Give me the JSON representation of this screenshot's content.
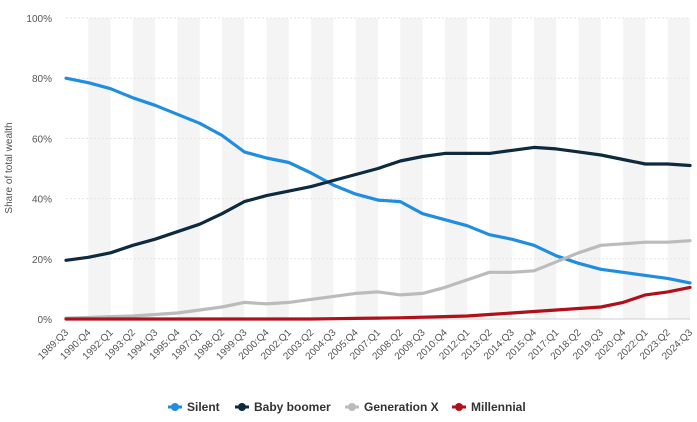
{
  "chart_data": {
    "type": "line",
    "title": "",
    "xlabel": "",
    "ylabel": "Share of total wealth",
    "ylim": [
      0,
      100
    ],
    "yticks": [
      "0%",
      "20%",
      "40%",
      "60%",
      "80%",
      "100%"
    ],
    "ytick_values": [
      0,
      20,
      40,
      60,
      80,
      100
    ],
    "grid": true,
    "legend_position": "bottom",
    "categories": [
      "1989:Q3",
      "1990:Q4",
      "1992:Q1",
      "1993:Q2",
      "1994:Q3",
      "1995:Q4",
      "1997:Q1",
      "1998:Q2",
      "1999:Q3",
      "2000:Q4",
      "2002:Q1",
      "2003:Q2",
      "2004:Q3",
      "2005:Q4",
      "2007:Q1",
      "2008:Q2",
      "2009:Q3",
      "2010:Q4",
      "2012:Q1",
      "2013:Q2",
      "2014:Q3",
      "2015:Q4",
      "2017:Q1",
      "2018:Q2",
      "2019:Q3",
      "2020:Q4",
      "2022:Q1",
      "2023:Q2",
      "2024:Q3"
    ],
    "series": [
      {
        "name": "Silent",
        "color": "#1f8ee0",
        "values": [
          80,
          78.5,
          76.5,
          73.5,
          71,
          68,
          65,
          61,
          55.5,
          53.5,
          52,
          48.5,
          44.5,
          41.5,
          39.5,
          39,
          35,
          33,
          31,
          28,
          26.5,
          24.5,
          21,
          18.5,
          16.5,
          15.5,
          14.5,
          13.5,
          12
        ]
      },
      {
        "name": "Baby boomer",
        "color": "#0d2a3f",
        "values": [
          19.5,
          20.5,
          22,
          24.5,
          26.5,
          29,
          31.5,
          35,
          39,
          41,
          42.5,
          44,
          46,
          48,
          50,
          52.5,
          54,
          55,
          55,
          55,
          56,
          57,
          56.5,
          55.5,
          54.5,
          53,
          51.5,
          51.5,
          51
        ]
      },
      {
        "name": "Generation X",
        "color": "#bbbbbb",
        "values": [
          0.3,
          0.5,
          0.8,
          1,
          1.5,
          2,
          3,
          4,
          5.5,
          5,
          5.5,
          6.5,
          7.5,
          8.5,
          9,
          8,
          8.5,
          10.5,
          13,
          15.5,
          15.5,
          16,
          19,
          22,
          24.5,
          25,
          25.5,
          25.5,
          26
        ]
      },
      {
        "name": "Millennial",
        "color": "#b0101a",
        "values": [
          0,
          0,
          0,
          0,
          0,
          0,
          0,
          0,
          0,
          0,
          0,
          0,
          0.1,
          0.2,
          0.3,
          0.4,
          0.6,
          0.8,
          1,
          1.5,
          2,
          2.5,
          3,
          3.5,
          4,
          5.5,
          8,
          9,
          10.5
        ]
      }
    ]
  }
}
